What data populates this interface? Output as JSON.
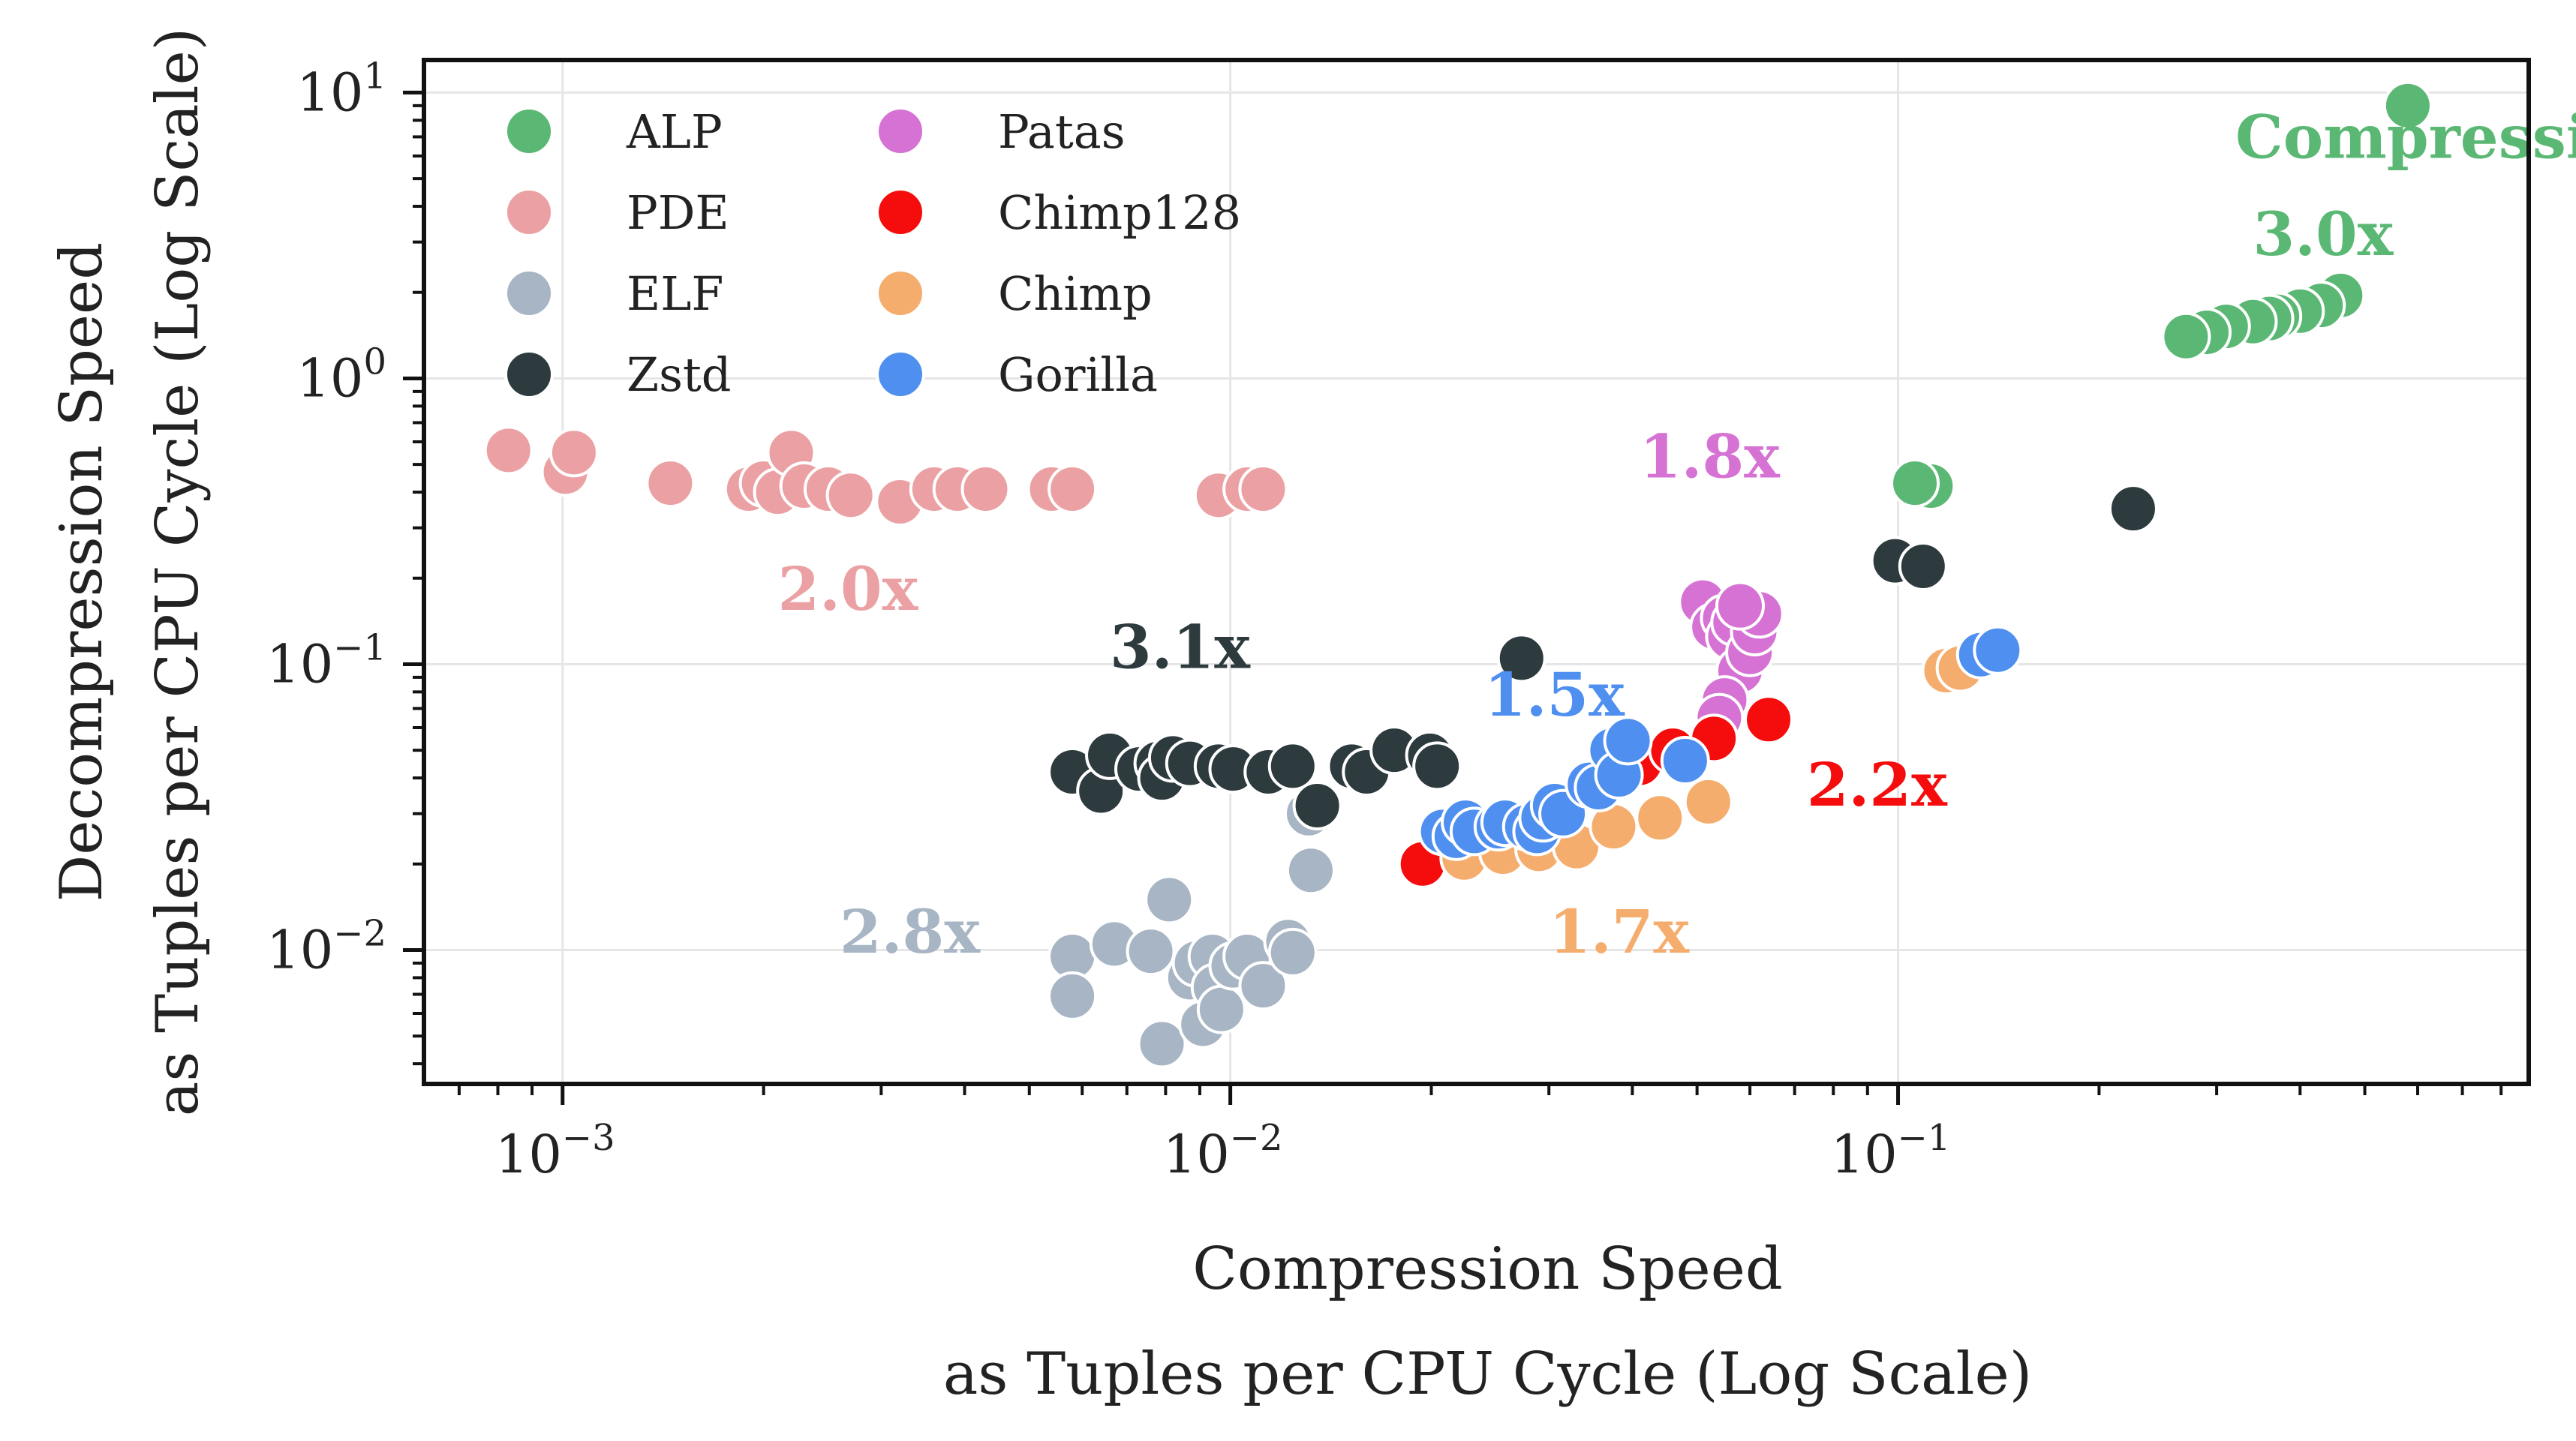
{
  "chart_data": {
    "type": "scatter",
    "xlabel": [
      "Compression Speed",
      "as Tuples per CPU Cycle (Log Scale)"
    ],
    "ylabel": [
      "Decompression Speed",
      "as Tuples per CPU Cycle (Log Scale)"
    ],
    "xscale": "log",
    "yscale": "log",
    "xlim": [
      0.00062,
      0.88
    ],
    "ylim": [
      0.0034,
      13
    ],
    "grid": true,
    "legend_position": "top-left",
    "x_ticks": [
      0.001,
      0.01,
      0.1
    ],
    "y_ticks": [
      0.01,
      0.1,
      1,
      10
    ],
    "series": [
      {
        "name": "ALP",
        "color": "#5bb874",
        "points": [
          [
            0.58,
            9.0
          ],
          [
            0.46,
            1.95
          ],
          [
            0.43,
            1.8
          ],
          [
            0.4,
            1.72
          ],
          [
            0.37,
            1.65
          ],
          [
            0.36,
            1.62
          ],
          [
            0.34,
            1.58
          ],
          [
            0.31,
            1.52
          ],
          [
            0.29,
            1.45
          ],
          [
            0.27,
            1.4
          ],
          [
            0.112,
            0.42
          ],
          [
            0.106,
            0.43
          ]
        ]
      },
      {
        "name": "PDE",
        "color": "#eba1a3",
        "points": [
          [
            0.00083,
            0.56
          ],
          [
            0.00101,
            0.47
          ],
          [
            0.00104,
            0.55
          ],
          [
            0.00145,
            0.43
          ],
          [
            0.0019,
            0.41
          ],
          [
            0.002,
            0.43
          ],
          [
            0.0021,
            0.4
          ],
          [
            0.0022,
            0.55
          ],
          [
            0.0023,
            0.42
          ],
          [
            0.0025,
            0.41
          ],
          [
            0.0027,
            0.39
          ],
          [
            0.0032,
            0.37
          ],
          [
            0.0036,
            0.41
          ],
          [
            0.0039,
            0.41
          ],
          [
            0.0043,
            0.41
          ],
          [
            0.0054,
            0.41
          ],
          [
            0.0058,
            0.41
          ],
          [
            0.0096,
            0.39
          ],
          [
            0.0106,
            0.41
          ],
          [
            0.0112,
            0.41
          ]
        ]
      },
      {
        "name": "ELF",
        "color": "#a8b5c4",
        "points": [
          [
            0.0058,
            0.0095
          ],
          [
            0.0058,
            0.0069
          ],
          [
            0.0067,
            0.0105
          ],
          [
            0.0076,
            0.0099
          ],
          [
            0.0079,
            0.0047
          ],
          [
            0.0081,
            0.015
          ],
          [
            0.0087,
            0.008
          ],
          [
            0.0089,
            0.009
          ],
          [
            0.0091,
            0.0055
          ],
          [
            0.0094,
            0.0095
          ],
          [
            0.0095,
            0.0074
          ],
          [
            0.0097,
            0.0062
          ],
          [
            0.0101,
            0.0088
          ],
          [
            0.0106,
            0.0095
          ],
          [
            0.0112,
            0.0075
          ],
          [
            0.0122,
            0.0107
          ],
          [
            0.0124,
            0.0098
          ],
          [
            0.0131,
            0.03
          ],
          [
            0.0132,
            0.019
          ]
        ]
      },
      {
        "name": "Zstd",
        "color": "#2d3a3e",
        "points": [
          [
            0.0058,
            0.042
          ],
          [
            0.0064,
            0.036
          ],
          [
            0.0066,
            0.048
          ],
          [
            0.0073,
            0.043
          ],
          [
            0.0078,
            0.045
          ],
          [
            0.0079,
            0.04
          ],
          [
            0.0082,
            0.047
          ],
          [
            0.0087,
            0.045
          ],
          [
            0.0096,
            0.044
          ],
          [
            0.0101,
            0.043
          ],
          [
            0.0114,
            0.042
          ],
          [
            0.0124,
            0.044
          ],
          [
            0.0135,
            0.032
          ],
          [
            0.0152,
            0.044
          ],
          [
            0.016,
            0.042
          ],
          [
            0.0176,
            0.05
          ],
          [
            0.0199,
            0.048
          ],
          [
            0.0204,
            0.044
          ],
          [
            0.0273,
            0.105
          ],
          [
            0.099,
            0.23
          ],
          [
            0.109,
            0.22
          ],
          [
            0.225,
            0.35
          ]
        ]
      },
      {
        "name": "Patas",
        "color": "#d672d4",
        "points": [
          [
            0.051,
            0.165
          ],
          [
            0.053,
            0.135
          ],
          [
            0.055,
            0.145
          ],
          [
            0.056,
            0.125
          ],
          [
            0.057,
            0.14
          ],
          [
            0.058,
            0.095
          ],
          [
            0.06,
            0.11
          ],
          [
            0.061,
            0.13
          ],
          [
            0.062,
            0.15
          ],
          [
            0.058,
            0.16
          ],
          [
            0.055,
            0.075
          ],
          [
            0.054,
            0.065
          ]
        ]
      },
      {
        "name": "Chimp128",
        "color": "#f50d0d",
        "points": [
          [
            0.0194,
            0.02
          ],
          [
            0.041,
            0.045
          ],
          [
            0.046,
            0.05
          ],
          [
            0.053,
            0.055
          ],
          [
            0.064,
            0.064
          ]
        ]
      },
      {
        "name": "Chimp",
        "color": "#f5ad6e",
        "points": [
          [
            0.0224,
            0.021
          ],
          [
            0.0256,
            0.022
          ],
          [
            0.029,
            0.0225
          ],
          [
            0.033,
            0.023
          ],
          [
            0.0375,
            0.027
          ],
          [
            0.044,
            0.029
          ],
          [
            0.052,
            0.033
          ],
          [
            0.118,
            0.095
          ],
          [
            0.124,
            0.097
          ]
        ]
      },
      {
        "name": "Gorilla",
        "color": "#4f8ff0",
        "points": [
          [
            0.0208,
            0.026
          ],
          [
            0.0218,
            0.025
          ],
          [
            0.0225,
            0.028
          ],
          [
            0.0232,
            0.026
          ],
          [
            0.0252,
            0.027
          ],
          [
            0.0258,
            0.028
          ],
          [
            0.0278,
            0.027
          ],
          [
            0.0288,
            0.026
          ],
          [
            0.0294,
            0.029
          ],
          [
            0.0306,
            0.032
          ],
          [
            0.0315,
            0.03
          ],
          [
            0.0345,
            0.038
          ],
          [
            0.0356,
            0.037
          ],
          [
            0.0373,
            0.05
          ],
          [
            0.0382,
            0.041
          ],
          [
            0.0394,
            0.054
          ],
          [
            0.048,
            0.046
          ],
          [
            0.133,
            0.108
          ],
          [
            0.141,
            0.112
          ]
        ]
      }
    ],
    "annotations": [
      {
        "text": "Compression Ratio:",
        "color": "#5bb874",
        "x": 0.32,
        "y": 5.9
      },
      {
        "text": "3.0x",
        "color": "#5bb874",
        "x": 0.34,
        "y": 2.7
      },
      {
        "text": "2.0x",
        "color": "#eba1a3",
        "x": 0.0021,
        "y": 0.155
      },
      {
        "text": "3.1x",
        "color": "#2d3a3e",
        "x": 0.0066,
        "y": 0.097
      },
      {
        "text": "1.8x",
        "color": "#d672d4",
        "x": 0.041,
        "y": 0.45
      },
      {
        "text": "1.5x",
        "color": "#4f8ff0",
        "x": 0.024,
        "y": 0.066
      },
      {
        "text": "2.2x",
        "color": "#f50d0d",
        "x": 0.073,
        "y": 0.032
      },
      {
        "text": "2.8x",
        "color": "#a8b5c4",
        "x": 0.0026,
        "y": 0.0098
      },
      {
        "text": "1.7x",
        "color": "#f5ad6e",
        "x": 0.03,
        "y": 0.0098
      }
    ]
  }
}
